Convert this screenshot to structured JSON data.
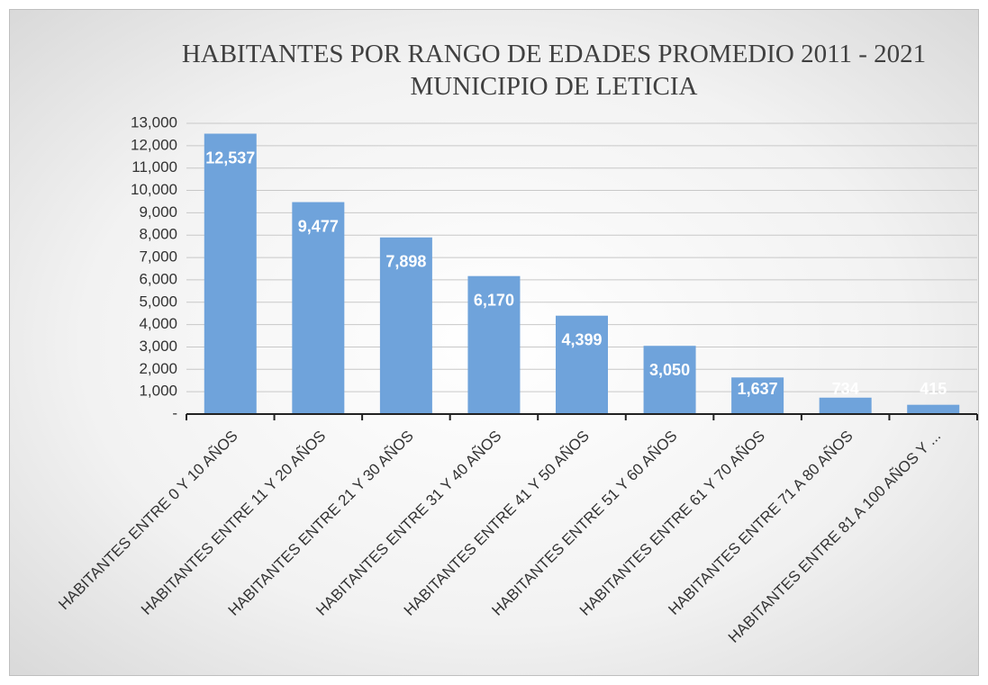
{
  "chart_data": {
    "type": "bar",
    "title": "HABITANTES POR RANGO DE EDADES PROMEDIO 2011 - 2021 MUNICIPIO DE LETICIA",
    "categories": [
      "HABITANTES ENTRE 0 Y 10 AÑOS",
      "HABITANTES ENTRE 11 Y 20 AÑOS",
      "HABITANTES ENTRE 21 Y 30 AÑOS",
      "HABITANTES ENTRE 31 Y 40 AÑOS",
      "HABITANTES ENTRE 41 Y 50 AÑOS",
      "HABITANTES ENTRE 51 Y 60 AÑOS",
      "HABITANTES ENTRE 61 Y 70 AÑOS",
      "HABITANTES ENTRE 71 A 80 AÑOS",
      "HABITANTES ENTRE 81 A 100 AÑOS Y ..."
    ],
    "values": [
      12537,
      9477,
      7898,
      6170,
      4399,
      3050,
      1637,
      734,
      415
    ],
    "value_labels": [
      "12,537",
      "9,477",
      "7,898",
      "6,170",
      "4,399",
      "3,050",
      "1,637",
      "734",
      "415"
    ],
    "color": "#6fa3db",
    "ylim": [
      0,
      13000
    ],
    "yticks": [
      {
        "value": 0,
        "label": "-"
      },
      {
        "value": 1000,
        "label": "1,000"
      },
      {
        "value": 2000,
        "label": "2,000"
      },
      {
        "value": 3000,
        "label": "3,000"
      },
      {
        "value": 4000,
        "label": "4,000"
      },
      {
        "value": 5000,
        "label": "5,000"
      },
      {
        "value": 6000,
        "label": "6,000"
      },
      {
        "value": 7000,
        "label": "7,000"
      },
      {
        "value": 8000,
        "label": "8,000"
      },
      {
        "value": 9000,
        "label": "9,000"
      },
      {
        "value": 10000,
        "label": "10,000"
      },
      {
        "value": 11000,
        "label": "11,000"
      },
      {
        "value": 12000,
        "label": "12,000"
      },
      {
        "value": 13000,
        "label": "13,000"
      }
    ],
    "grid": true
  }
}
